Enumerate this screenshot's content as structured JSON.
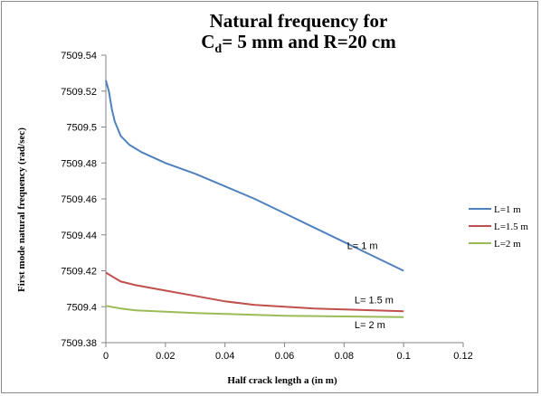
{
  "chart_data": {
    "type": "line",
    "title_line1": "Natural frequency for",
    "title_line2": {
      "c": "C",
      "sub": "d",
      "rest": "= 5 mm and R=20 cm"
    },
    "xlabel": "Half crack length a (in m)",
    "ylabel": "First mode natural frequency (rad/sec)",
    "xlim": [
      0,
      0.12
    ],
    "ylim": [
      7509.38,
      7509.54
    ],
    "x_ticks": [
      0,
      0.02,
      0.04,
      0.06,
      0.08,
      0.1,
      0.12
    ],
    "x_tick_labels": [
      "0",
      "0.02",
      "0.04",
      "0.06",
      "0.08",
      "0.1",
      "0.12"
    ],
    "y_ticks": [
      7509.38,
      7509.4,
      7509.42,
      7509.44,
      7509.46,
      7509.48,
      7509.5,
      7509.52,
      7509.54
    ],
    "y_tick_labels": [
      "7509.38",
      "7509.4",
      "7509.42",
      "7509.44",
      "7509.46",
      "7509.48",
      "7509.5",
      "7509.52",
      "7509.54"
    ],
    "grid": false,
    "legend_position": "right",
    "series": [
      {
        "name": "L=1 m",
        "color": "#4f81bd",
        "x": [
          0,
          0.001,
          0.002,
          0.003,
          0.005,
          0.008,
          0.012,
          0.02,
          0.03,
          0.04,
          0.05,
          0.06,
          0.07,
          0.08,
          0.09,
          0.1
        ],
        "y": [
          7509.526,
          7509.52,
          7509.51,
          7509.503,
          7509.495,
          7509.49,
          7509.486,
          7509.48,
          7509.474,
          7509.467,
          7509.46,
          7509.452,
          7509.444,
          7509.436,
          7509.428,
          7509.42
        ]
      },
      {
        "name": "L=1.5 m",
        "color": "#c0504d",
        "x": [
          0,
          0.002,
          0.005,
          0.01,
          0.02,
          0.03,
          0.04,
          0.05,
          0.06,
          0.07,
          0.08,
          0.09,
          0.1
        ],
        "y": [
          7509.419,
          7509.417,
          7509.414,
          7509.412,
          7509.409,
          7509.406,
          7509.403,
          7509.401,
          7509.4,
          7509.399,
          7509.3985,
          7509.398,
          7509.3975
        ]
      },
      {
        "name": "L=2 m",
        "color": "#9bbb59",
        "x": [
          0,
          0.005,
          0.01,
          0.02,
          0.03,
          0.04,
          0.05,
          0.06,
          0.07,
          0.08,
          0.09,
          0.1
        ],
        "y": [
          7509.4005,
          7509.399,
          7509.398,
          7509.3972,
          7509.3965,
          7509.396,
          7509.3955,
          7509.395,
          7509.3948,
          7509.3946,
          7509.3944,
          7509.3942
        ]
      }
    ],
    "annotations": [
      {
        "text": "L= 1 m",
        "x": 0.081,
        "y": 7509.432
      },
      {
        "text": "L= 1.5 m",
        "x": 0.0835,
        "y": 7509.402
      },
      {
        "text": "L= 2 m",
        "x": 0.0835,
        "y": 7509.388
      }
    ]
  }
}
